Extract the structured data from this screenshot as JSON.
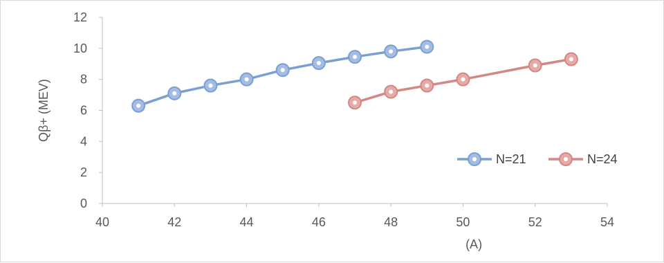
{
  "chart_data": {
    "type": "line",
    "xlabel": "(A)",
    "ylabel": "Qβ+ (MEV)",
    "xlim": [
      40,
      54
    ],
    "ylim": [
      0,
      12
    ],
    "x_ticks": [
      "40",
      "42",
      "44",
      "46",
      "48",
      "50",
      "52",
      "54"
    ],
    "y_ticks": [
      "0",
      "2",
      "4",
      "6",
      "8",
      "10",
      "12"
    ],
    "grid": false,
    "legend_position": "right",
    "series": [
      {
        "name": "N=21",
        "color": "#7a9fd3",
        "fill": "#a3bde3",
        "x": [
          41,
          42,
          43,
          44,
          45,
          46,
          47,
          48,
          49
        ],
        "y": [
          6.3,
          7.1,
          7.6,
          8.0,
          8.6,
          9.05,
          9.45,
          9.8,
          10.1
        ]
      },
      {
        "name": "N=24",
        "color": "#d38884",
        "fill": "#e6aaa7",
        "x": [
          47,
          48,
          49,
          50,
          52,
          53
        ],
        "y": [
          6.5,
          7.2,
          7.6,
          8.0,
          8.9,
          9.3
        ]
      }
    ]
  }
}
